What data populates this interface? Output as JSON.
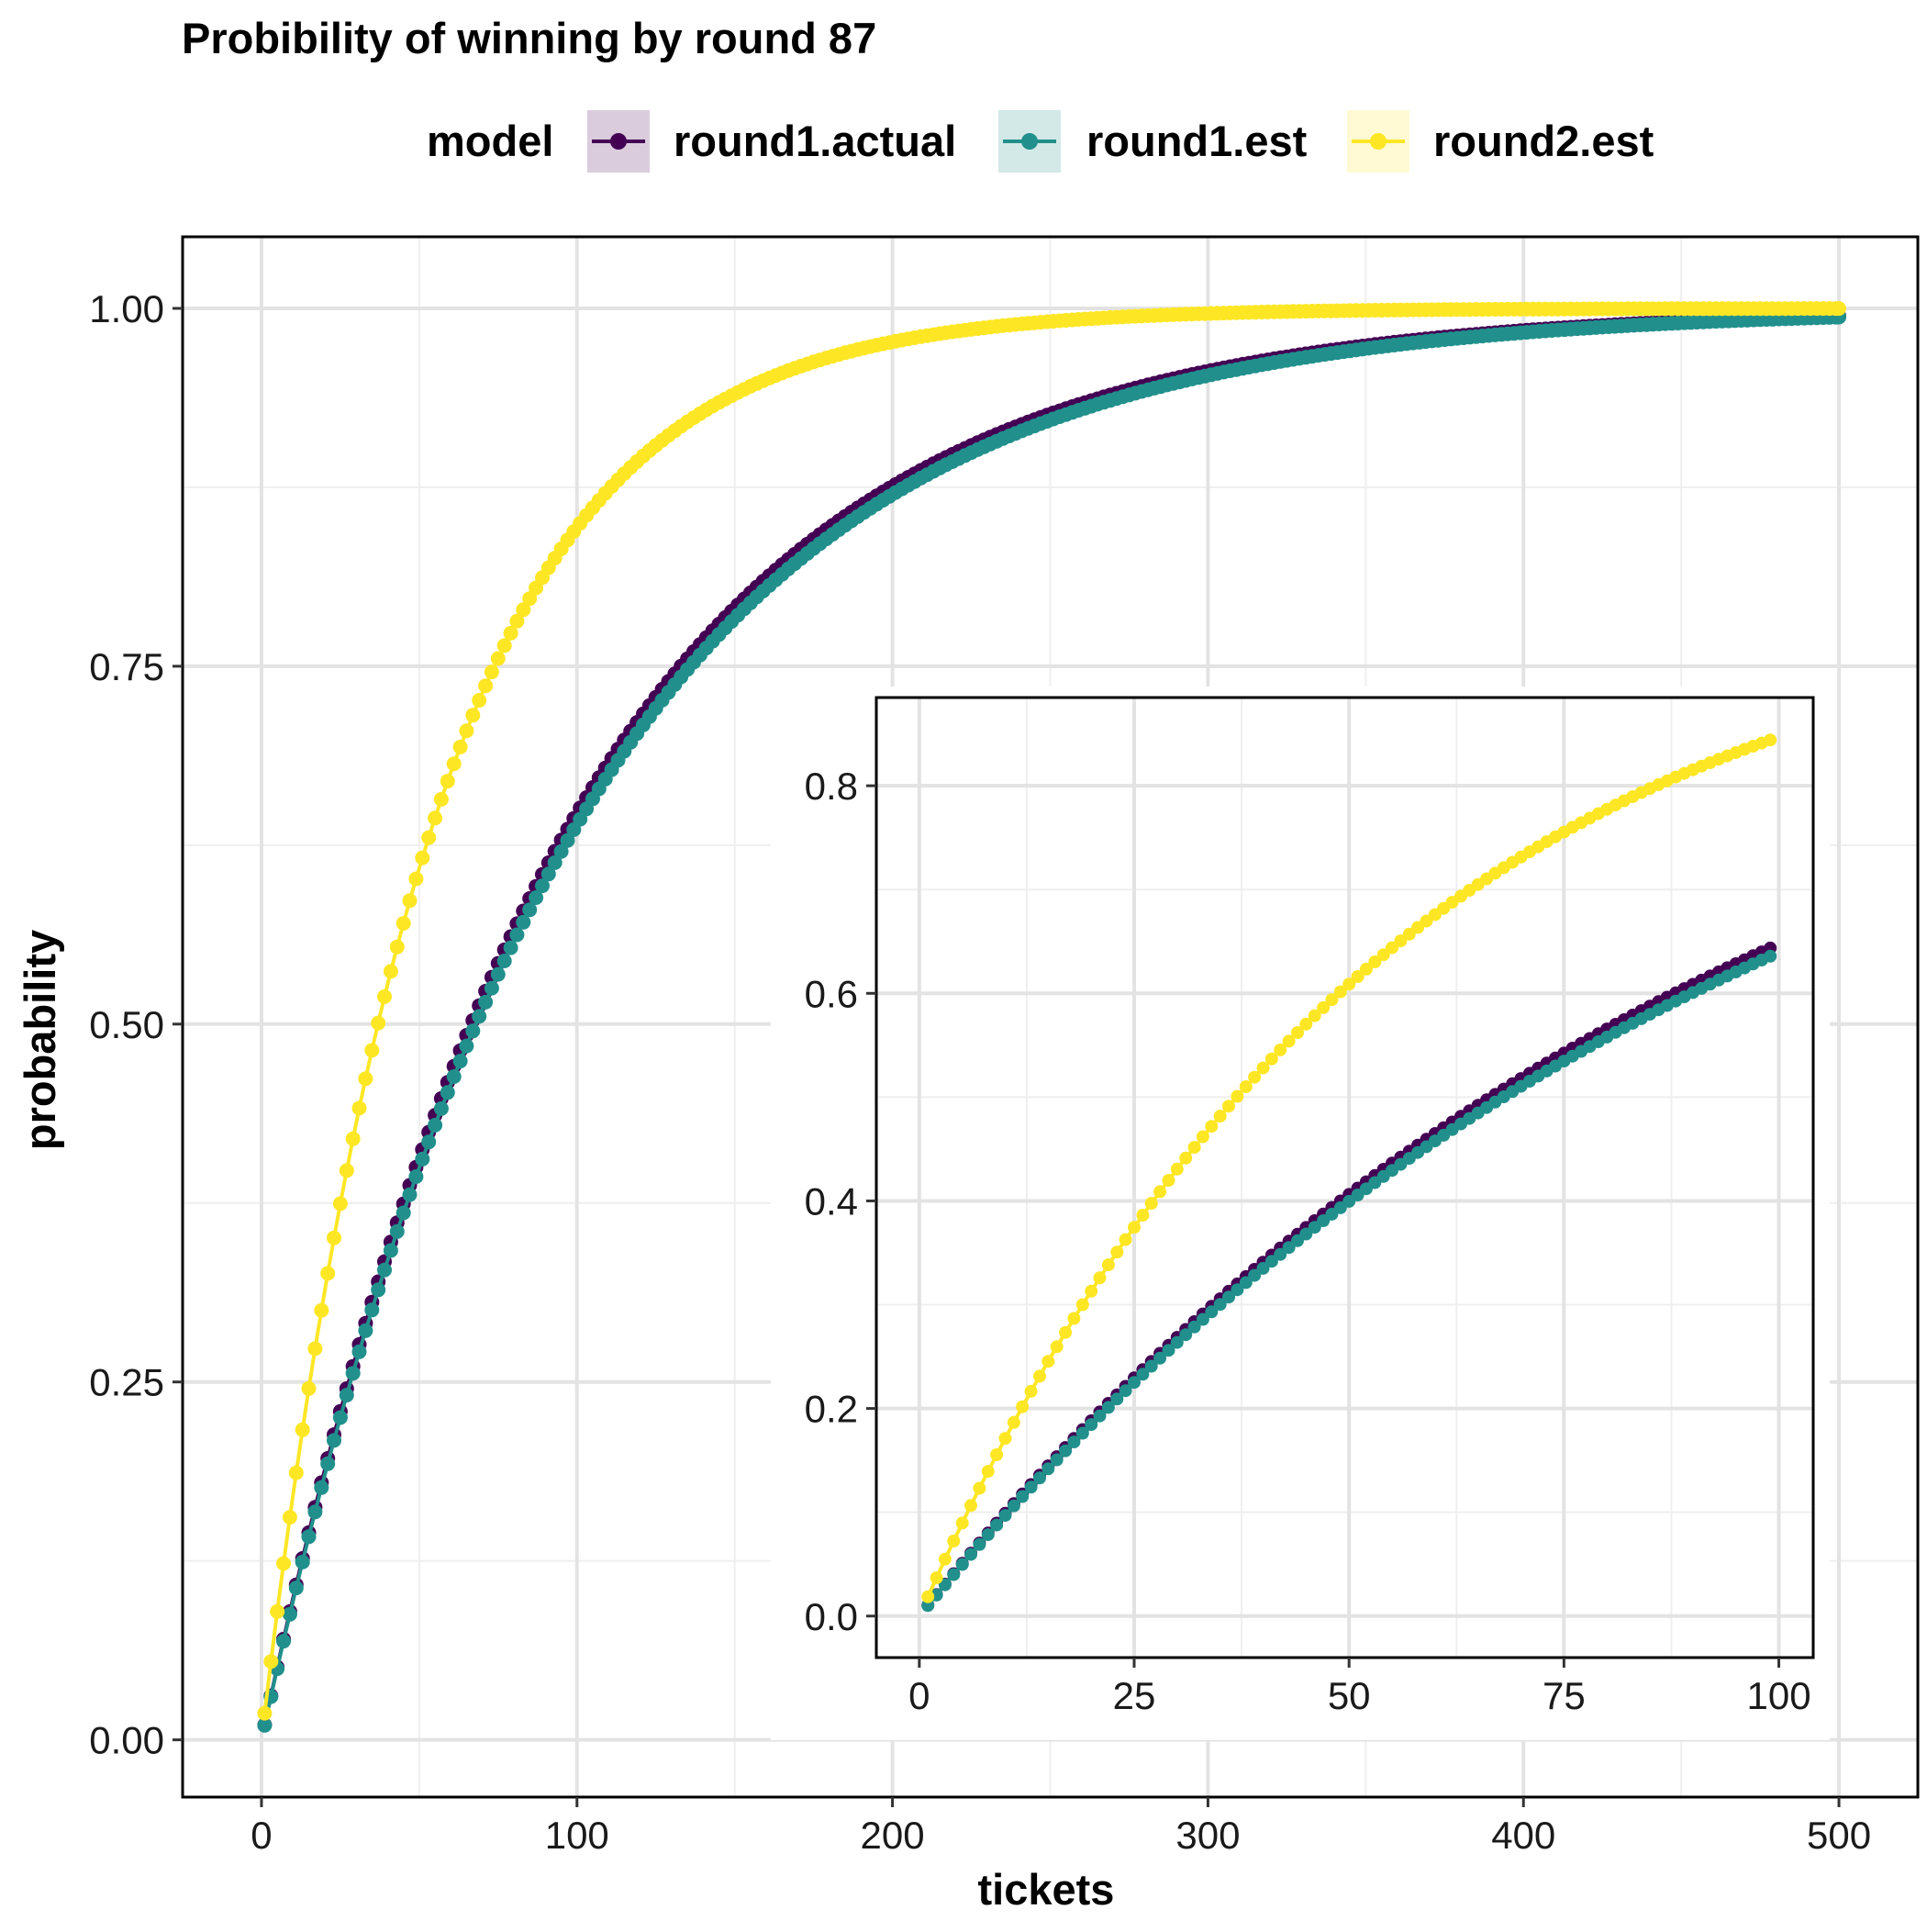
{
  "title": "Probibility of winning by round 87",
  "legend": {
    "title": "model",
    "items": [
      {
        "label": "round1.actual",
        "color": "#440154"
      },
      {
        "label": "round1.est",
        "color": "#21908C"
      },
      {
        "label": "round2.est",
        "color": "#FDE725"
      }
    ]
  },
  "chart_data": [
    {
      "type": "line",
      "role": "main",
      "xlabel": "tickets",
      "ylabel": "probability",
      "xlim": [
        -25,
        525
      ],
      "ylim": [
        -0.04,
        1.05
      ],
      "x_ticks": [
        0,
        100,
        200,
        300,
        400,
        500
      ],
      "x_tick_labels": [
        "0",
        "100",
        "200",
        "300",
        "400",
        "500"
      ],
      "y_ticks": [
        0,
        0.25,
        0.5,
        0.75,
        1.0
      ],
      "y_tick_labels": [
        "0.00",
        "0.25",
        "0.50",
        "0.75",
        "1.00"
      ],
      "x_range": [
        1,
        500
      ],
      "x_step": 2,
      "grid": true,
      "legend_position": "top",
      "series": [
        {
          "name": "round1.actual",
          "color": "#440154",
          "per_ticket_rate": 0.01037
        },
        {
          "name": "round1.est",
          "color": "#21908C",
          "per_ticket_rate": 0.01015
        },
        {
          "name": "round2.est",
          "color": "#FDE725",
          "per_ticket_rate": 0.0186
        }
      ]
    },
    {
      "type": "line",
      "role": "inset",
      "xlim": [
        -5,
        104
      ],
      "ylim": [
        -0.04,
        0.885
      ],
      "x_ticks": [
        0,
        25,
        50,
        75,
        100
      ],
      "x_tick_labels": [
        "0",
        "25",
        "50",
        "75",
        "100"
      ],
      "y_ticks": [
        0,
        0.2,
        0.4,
        0.6,
        0.8
      ],
      "y_tick_labels": [
        "0.0",
        "0.2",
        "0.4",
        "0.6",
        "0.8"
      ],
      "x_range": [
        1,
        99
      ],
      "x_step": 1,
      "grid": true,
      "series": [
        {
          "name": "round1.actual",
          "color": "#440154",
          "per_ticket_rate": 0.01037
        },
        {
          "name": "round1.est",
          "color": "#21908C",
          "per_ticket_rate": 0.01015
        },
        {
          "name": "round2.est",
          "color": "#FDE725",
          "per_ticket_rate": 0.0186
        }
      ]
    }
  ]
}
